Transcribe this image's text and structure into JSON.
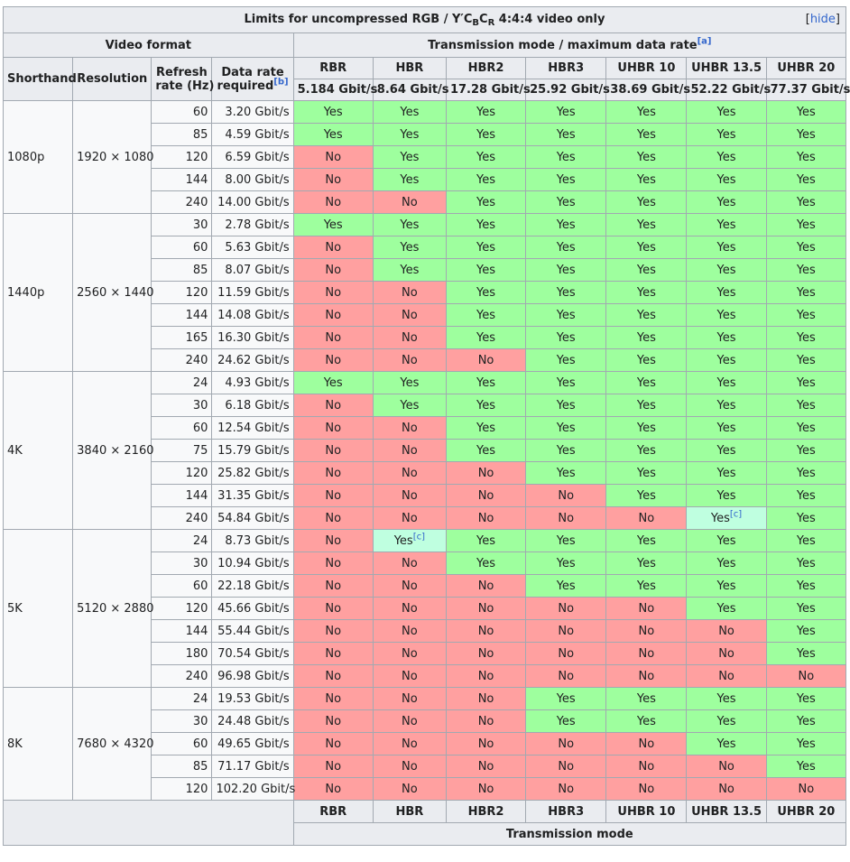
{
  "caption": {
    "title_prefix": "Limits for uncompressed RGB / Y′C",
    "title_sub_b": "B",
    "title_mid": "C",
    "title_sub_r": "R",
    "title_suffix": " 4:4:4 video only",
    "hide_open": "[",
    "hide_label": "hide",
    "hide_close": "]"
  },
  "header": {
    "video_format": "Video format",
    "transmission_mode": "Transmission mode / maximum data rate",
    "transmission_note": "[a]",
    "shorthand": "Shorthand",
    "resolution": "Resolution",
    "refresh_line1": "Refresh",
    "refresh_line2": "rate (Hz)",
    "datarate_line1": "Data rate",
    "datarate_line2": "required",
    "datarate_note": "[b]",
    "modes": [
      "RBR",
      "HBR",
      "HBR2",
      "HBR3",
      "UHBR 10",
      "UHBR 13.5",
      "UHBR 20"
    ],
    "max_rates": [
      "5.184 Gbit/s",
      "8.64 Gbit/s",
      "17.28 Gbit/s",
      "25.92 Gbit/s",
      "38.69 Gbit/s",
      "52.22 Gbit/s",
      "77.37 Gbit/s"
    ]
  },
  "labels": {
    "yes": "Yes",
    "no": "No",
    "note_c": "[c]"
  },
  "groups": [
    {
      "shorthand": "1080p",
      "resolution": "1920 × 1080",
      "rows": [
        {
          "refresh": "60",
          "rate": "3.20 Gbit/s",
          "cells": [
            "Y",
            "Y",
            "Y",
            "Y",
            "Y",
            "Y",
            "Y"
          ]
        },
        {
          "refresh": "85",
          "rate": "4.59 Gbit/s",
          "cells": [
            "Y",
            "Y",
            "Y",
            "Y",
            "Y",
            "Y",
            "Y"
          ]
        },
        {
          "refresh": "120",
          "rate": "6.59 Gbit/s",
          "cells": [
            "N",
            "Y",
            "Y",
            "Y",
            "Y",
            "Y",
            "Y"
          ]
        },
        {
          "refresh": "144",
          "rate": "8.00 Gbit/s",
          "cells": [
            "N",
            "Y",
            "Y",
            "Y",
            "Y",
            "Y",
            "Y"
          ]
        },
        {
          "refresh": "240",
          "rate": "14.00 Gbit/s",
          "cells": [
            "N",
            "N",
            "Y",
            "Y",
            "Y",
            "Y",
            "Y"
          ]
        }
      ]
    },
    {
      "shorthand": "1440p",
      "resolution": "2560 × 1440",
      "rows": [
        {
          "refresh": "30",
          "rate": "2.78 Gbit/s",
          "cells": [
            "Y",
            "Y",
            "Y",
            "Y",
            "Y",
            "Y",
            "Y"
          ]
        },
        {
          "refresh": "60",
          "rate": "5.63 Gbit/s",
          "cells": [
            "N",
            "Y",
            "Y",
            "Y",
            "Y",
            "Y",
            "Y"
          ]
        },
        {
          "refresh": "85",
          "rate": "8.07 Gbit/s",
          "cells": [
            "N",
            "Y",
            "Y",
            "Y",
            "Y",
            "Y",
            "Y"
          ]
        },
        {
          "refresh": "120",
          "rate": "11.59 Gbit/s",
          "cells": [
            "N",
            "N",
            "Y",
            "Y",
            "Y",
            "Y",
            "Y"
          ]
        },
        {
          "refresh": "144",
          "rate": "14.08 Gbit/s",
          "cells": [
            "N",
            "N",
            "Y",
            "Y",
            "Y",
            "Y",
            "Y"
          ]
        },
        {
          "refresh": "165",
          "rate": "16.30 Gbit/s",
          "cells": [
            "N",
            "N",
            "Y",
            "Y",
            "Y",
            "Y",
            "Y"
          ]
        },
        {
          "refresh": "240",
          "rate": "24.62 Gbit/s",
          "cells": [
            "N",
            "N",
            "N",
            "Y",
            "Y",
            "Y",
            "Y"
          ]
        }
      ]
    },
    {
      "shorthand": "4K",
      "resolution": "3840 × 2160",
      "rows": [
        {
          "refresh": "24",
          "rate": "4.93 Gbit/s",
          "cells": [
            "Y",
            "Y",
            "Y",
            "Y",
            "Y",
            "Y",
            "Y"
          ]
        },
        {
          "refresh": "30",
          "rate": "6.18 Gbit/s",
          "cells": [
            "N",
            "Y",
            "Y",
            "Y",
            "Y",
            "Y",
            "Y"
          ]
        },
        {
          "refresh": "60",
          "rate": "12.54 Gbit/s",
          "cells": [
            "N",
            "N",
            "Y",
            "Y",
            "Y",
            "Y",
            "Y"
          ]
        },
        {
          "refresh": "75",
          "rate": "15.79 Gbit/s",
          "cells": [
            "N",
            "N",
            "Y",
            "Y",
            "Y",
            "Y",
            "Y"
          ]
        },
        {
          "refresh": "120",
          "rate": "25.82 Gbit/s",
          "cells": [
            "N",
            "N",
            "N",
            "Y",
            "Y",
            "Y",
            "Y"
          ]
        },
        {
          "refresh": "144",
          "rate": "31.35 Gbit/s",
          "cells": [
            "N",
            "N",
            "N",
            "N",
            "Y",
            "Y",
            "Y"
          ]
        },
        {
          "refresh": "240",
          "rate": "54.84 Gbit/s",
          "cells": [
            "N",
            "N",
            "N",
            "N",
            "N",
            "C",
            "Y"
          ]
        }
      ]
    },
    {
      "shorthand": "5K",
      "resolution": "5120 × 2880",
      "rows": [
        {
          "refresh": "24",
          "rate": "8.73 Gbit/s",
          "cells": [
            "N",
            "C",
            "Y",
            "Y",
            "Y",
            "Y",
            "Y"
          ]
        },
        {
          "refresh": "30",
          "rate": "10.94 Gbit/s",
          "cells": [
            "N",
            "N",
            "Y",
            "Y",
            "Y",
            "Y",
            "Y"
          ]
        },
        {
          "refresh": "60",
          "rate": "22.18 Gbit/s",
          "cells": [
            "N",
            "N",
            "N",
            "Y",
            "Y",
            "Y",
            "Y"
          ]
        },
        {
          "refresh": "120",
          "rate": "45.66 Gbit/s",
          "cells": [
            "N",
            "N",
            "N",
            "N",
            "N",
            "Y",
            "Y"
          ]
        },
        {
          "refresh": "144",
          "rate": "55.44 Gbit/s",
          "cells": [
            "N",
            "N",
            "N",
            "N",
            "N",
            "N",
            "Y"
          ]
        },
        {
          "refresh": "180",
          "rate": "70.54 Gbit/s",
          "cells": [
            "N",
            "N",
            "N",
            "N",
            "N",
            "N",
            "Y"
          ]
        },
        {
          "refresh": "240",
          "rate": "96.98 Gbit/s",
          "cells": [
            "N",
            "N",
            "N",
            "N",
            "N",
            "N",
            "N"
          ]
        }
      ]
    },
    {
      "shorthand": "8K",
      "resolution": "7680 × 4320",
      "rows": [
        {
          "refresh": "24",
          "rate": "19.53 Gbit/s",
          "cells": [
            "N",
            "N",
            "N",
            "Y",
            "Y",
            "Y",
            "Y"
          ]
        },
        {
          "refresh": "30",
          "rate": "24.48 Gbit/s",
          "cells": [
            "N",
            "N",
            "N",
            "Y",
            "Y",
            "Y",
            "Y"
          ]
        },
        {
          "refresh": "60",
          "rate": "49.65 Gbit/s",
          "cells": [
            "N",
            "N",
            "N",
            "N",
            "N",
            "Y",
            "Y"
          ]
        },
        {
          "refresh": "85",
          "rate": "71.17 Gbit/s",
          "cells": [
            "N",
            "N",
            "N",
            "N",
            "N",
            "N",
            "Y"
          ]
        },
        {
          "refresh": "120",
          "rate": "102.20 Gbit/s",
          "cells": [
            "N",
            "N",
            "N",
            "N",
            "N",
            "N",
            "N"
          ]
        }
      ]
    }
  ],
  "footer": {
    "transmission_mode": "Transmission mode"
  },
  "colors": {
    "yes": "#9eff9e",
    "no": "#ffa0a0",
    "yes_note": "#bfffe0",
    "header_bg": "#eaecf0",
    "border": "#a2a9b1",
    "link": "#3366cc"
  }
}
